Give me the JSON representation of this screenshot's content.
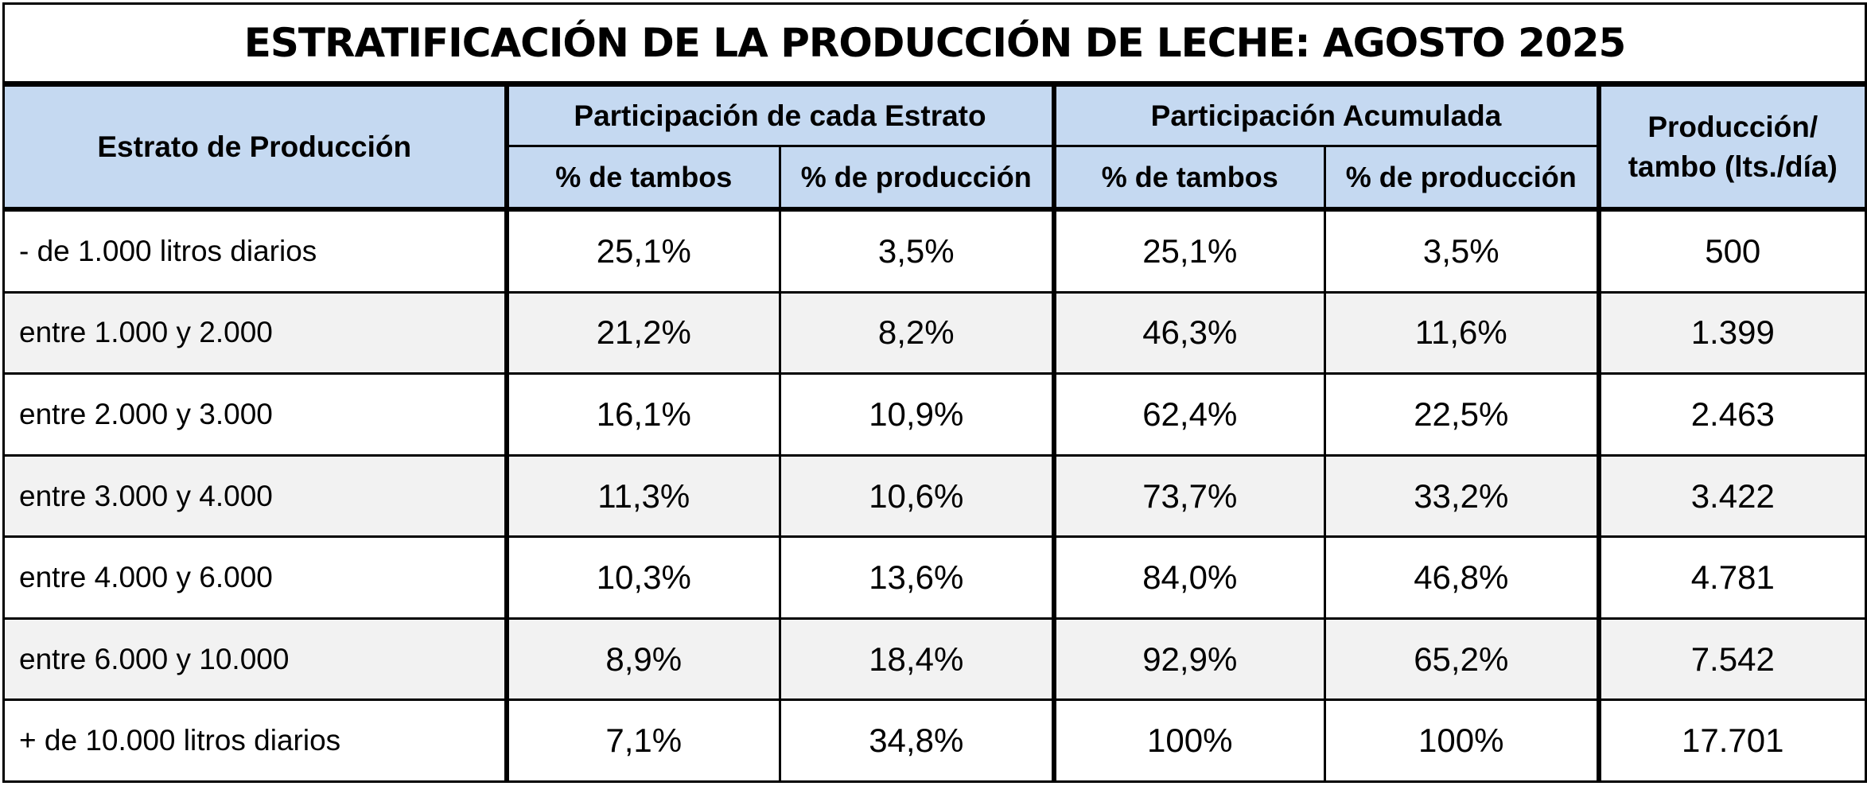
{
  "chart_data": {
    "type": "table",
    "title": "ESTRATIFICACIÓN DE LA PRODUCCIÓN DE LECHE: AGOSTO 2025",
    "header": {
      "stratum": "Estrato de Producción",
      "group_each": "Participación de cada Estrato",
      "group_cumulative": "Participación Acumulada",
      "production_line1": "Producción/",
      "production_line2": "tambo (lts./día)",
      "sub_tambos": "% de tambos",
      "sub_produccion": "% de producción"
    },
    "rows": [
      {
        "stratum": "- de 1.000 litros diarios",
        "pct_tambos": "25,1%",
        "pct_produccion": "3,5%",
        "acum_tambos": "25,1%",
        "acum_produccion": "3,5%",
        "produccion_tambo": "500"
      },
      {
        "stratum": "entre 1.000 y 2.000",
        "pct_tambos": "21,2%",
        "pct_produccion": "8,2%",
        "acum_tambos": "46,3%",
        "acum_produccion": "11,6%",
        "produccion_tambo": "1.399"
      },
      {
        "stratum": "entre 2.000 y 3.000",
        "pct_tambos": "16,1%",
        "pct_produccion": "10,9%",
        "acum_tambos": "62,4%",
        "acum_produccion": "22,5%",
        "produccion_tambo": "2.463"
      },
      {
        "stratum": "entre 3.000 y 4.000",
        "pct_tambos": "11,3%",
        "pct_produccion": "10,6%",
        "acum_tambos": "73,7%",
        "acum_produccion": "33,2%",
        "produccion_tambo": "3.422"
      },
      {
        "stratum": "entre 4.000 y 6.000",
        "pct_tambos": "10,3%",
        "pct_produccion": "13,6%",
        "acum_tambos": "84,0%",
        "acum_produccion": "46,8%",
        "produccion_tambo": "4.781"
      },
      {
        "stratum": "entre 6.000 y 10.000",
        "pct_tambos": "8,9%",
        "pct_produccion": "18,4%",
        "acum_tambos": "92,9%",
        "acum_produccion": "65,2%",
        "produccion_tambo": "7.542"
      },
      {
        "stratum": "+ de 10.000 litros diarios",
        "pct_tambos": "7,1%",
        "pct_produccion": "34,8%",
        "acum_tambos": "100%",
        "acum_produccion": "100%",
        "produccion_tambo": "17.701"
      }
    ]
  },
  "colors": {
    "header_fill": "#c5d9f1",
    "alt_row_fill": "#f2f2f2",
    "border": "#000000"
  }
}
